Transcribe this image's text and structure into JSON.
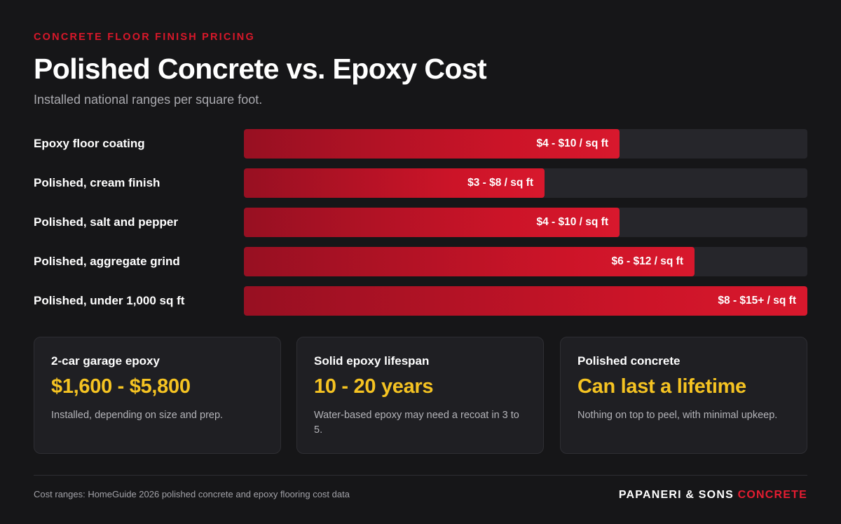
{
  "header": {
    "eyebrow": "CONCRETE FLOOR FINISH PRICING",
    "title": "Polished Concrete vs. Epoxy Cost",
    "subtitle": "Installed national ranges per square foot."
  },
  "chart_data": {
    "type": "bar",
    "orientation": "horizontal",
    "unit": "$ / sq ft",
    "xlim": [
      0,
      15
    ],
    "categories": [
      "Epoxy floor coating",
      "Polished, cream finish",
      "Polished, salt and pepper",
      "Polished, aggregate grind",
      "Polished, under 1,000 sq ft"
    ],
    "values": [
      10,
      8,
      10,
      12,
      15
    ],
    "ranges": [
      [
        4,
        10
      ],
      [
        3,
        8
      ],
      [
        4,
        10
      ],
      [
        6,
        12
      ],
      [
        8,
        15
      ]
    ],
    "data_labels": [
      "$4 - $10 / sq ft",
      "$3 - $8 / sq ft",
      "$4 - $10 / sq ft",
      "$6 - $12 / sq ft",
      "$8 - $15+ / sq ft"
    ],
    "colors": {
      "bar": "#cc1428",
      "track": "#26262b"
    }
  },
  "cards": [
    {
      "label": "2-car garage epoxy",
      "value": "$1,600 - $5,800",
      "note": "Installed, depending on size and prep."
    },
    {
      "label": "Solid epoxy lifespan",
      "value": "10 - 20 years",
      "note": "Water-based epoxy may need a recoat in 3 to 5."
    },
    {
      "label": "Polished concrete",
      "value": "Can last a lifetime",
      "note": "Nothing on top to peel, with minimal upkeep."
    }
  ],
  "footer": {
    "source": "Cost ranges: HomeGuide 2026 polished concrete and epoxy flooring cost data",
    "brand_main": "PAPANERI & SONS",
    "brand_accent": "CONCRETE"
  },
  "colors": {
    "background": "#161618",
    "accent_red": "#d9182a",
    "accent_yellow": "#f5c322"
  }
}
